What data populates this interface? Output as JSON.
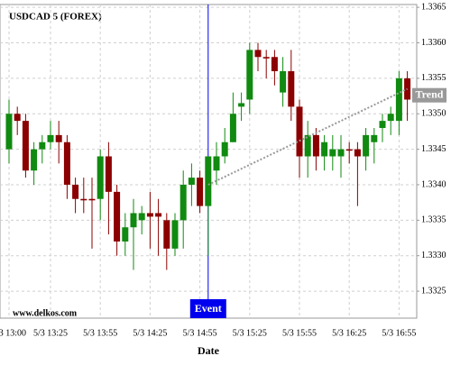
{
  "chart_data": {
    "type": "candlestick",
    "title": "USDCAD 5 (FOREX)",
    "x_label": "Date",
    "watermark": "www.delkos.com",
    "categories": [
      "5/3 13:00",
      null,
      null,
      null,
      null,
      "5/3 13:25",
      null,
      null,
      null,
      null,
      null,
      "5/3 13:55",
      null,
      null,
      null,
      null,
      null,
      "5/3 14:25",
      null,
      null,
      null,
      null,
      null,
      "5/3 14:55",
      null,
      null,
      null,
      null,
      null,
      "5/3 15:25",
      null,
      null,
      null,
      null,
      null,
      "5/3 15:55",
      null,
      null,
      null,
      null,
      null,
      "5/3 16:25",
      null,
      null,
      null,
      null,
      null,
      "5/3 16:55",
      null
    ],
    "open": [
      1.3345,
      1.335,
      1.3349,
      1.3342,
      1.3345,
      1.3346,
      1.3347,
      1.3346,
      1.334,
      1.3338,
      1.3338,
      1.3338,
      1.3344,
      1.3339,
      1.3332,
      1.3334,
      1.3335,
      1.3336,
      1.3336,
      1.3335,
      1.3331,
      1.3335,
      1.334,
      1.3341,
      1.3337,
      1.3342,
      1.3344,
      1.3346,
      1.3351,
      1.3352,
      1.3359,
      1.3358,
      1.3358,
      1.3353,
      1.3356,
      1.3351,
      1.3344,
      1.3347,
      1.3344,
      1.3344,
      1.3344,
      1.3345,
      1.3345,
      1.3344,
      1.3346,
      1.3348,
      1.3349,
      1.3349,
      1.3355
    ],
    "high": [
      1.3352,
      1.3351,
      1.335,
      1.3346,
      1.3347,
      1.3349,
      1.3349,
      1.3347,
      1.3341,
      1.3341,
      1.3341,
      1.3345,
      1.3346,
      1.334,
      1.3336,
      1.3338,
      1.3337,
      1.3339,
      1.3338,
      1.3336,
      1.3336,
      1.3342,
      1.3343,
      1.3342,
      1.3344,
      1.3346,
      1.3348,
      1.3353,
      1.3353,
      1.336,
      1.336,
      1.3359,
      1.3359,
      1.3358,
      1.3359,
      1.3352,
      1.3349,
      1.3348,
      1.3347,
      1.3347,
      1.3347,
      1.3346,
      1.3346,
      1.3348,
      1.3348,
      1.335,
      1.3351,
      1.3356,
      1.3356
    ],
    "low": [
      1.3343,
      1.3347,
      1.3341,
      1.334,
      1.3343,
      1.3345,
      1.3343,
      1.3338,
      1.3336,
      1.3336,
      1.3331,
      1.3335,
      1.3333,
      1.333,
      1.333,
      1.3328,
      1.3333,
      1.3331,
      1.333,
      1.3328,
      1.333,
      1.3331,
      1.3337,
      1.3336,
      1.333,
      1.334,
      1.3343,
      1.3346,
      1.3349,
      1.335,
      1.3356,
      1.3355,
      1.3354,
      1.3351,
      1.3349,
      1.3341,
      1.3341,
      1.3342,
      1.3342,
      1.3342,
      1.3341,
      1.3343,
      1.3337,
      1.3342,
      1.3343,
      1.3346,
      1.3347,
      1.3347,
      1.3349
    ],
    "close": [
      1.335,
      1.3349,
      1.3342,
      1.3345,
      1.3346,
      1.3347,
      1.3346,
      1.334,
      1.3338,
      1.33378,
      1.33378,
      1.3344,
      1.3339,
      1.3332,
      1.3334,
      1.3336,
      1.3336,
      1.33355,
      1.33355,
      1.3331,
      1.3335,
      1.334,
      1.3341,
      1.3337,
      1.3344,
      1.3344,
      1.3346,
      1.335,
      1.33515,
      1.3359,
      1.3358,
      1.33578,
      1.3356,
      1.3356,
      1.3351,
      1.3344,
      1.3347,
      1.3344,
      1.3346,
      1.3345,
      1.3345,
      1.33448,
      1.3344,
      1.3347,
      1.3347,
      1.3349,
      1.335,
      1.3355,
      1.3352
    ],
    "up_color": "#108a10",
    "down_color": "#8b0000",
    "ylim": [
      1.33212,
      1.33654
    ],
    "yticks": [
      1.3325,
      {
        "value": 1.333,
        "label": "1.3330"
      },
      1.3335,
      {
        "value": 1.334,
        "label": "1.3340"
      },
      1.3345,
      {
        "value": 1.335,
        "label": "1.3350"
      },
      1.3355,
      {
        "value": 1.336,
        "label": "1.3360"
      },
      1.3365
    ],
    "grid": true,
    "event": {
      "label": "Event",
      "index": 24,
      "color": "#0000ee"
    },
    "trend": {
      "label": "Trend",
      "start": [
        24,
        1.334
      ],
      "end": [
        48,
        1.33535
      ],
      "color": "#999999"
    }
  }
}
